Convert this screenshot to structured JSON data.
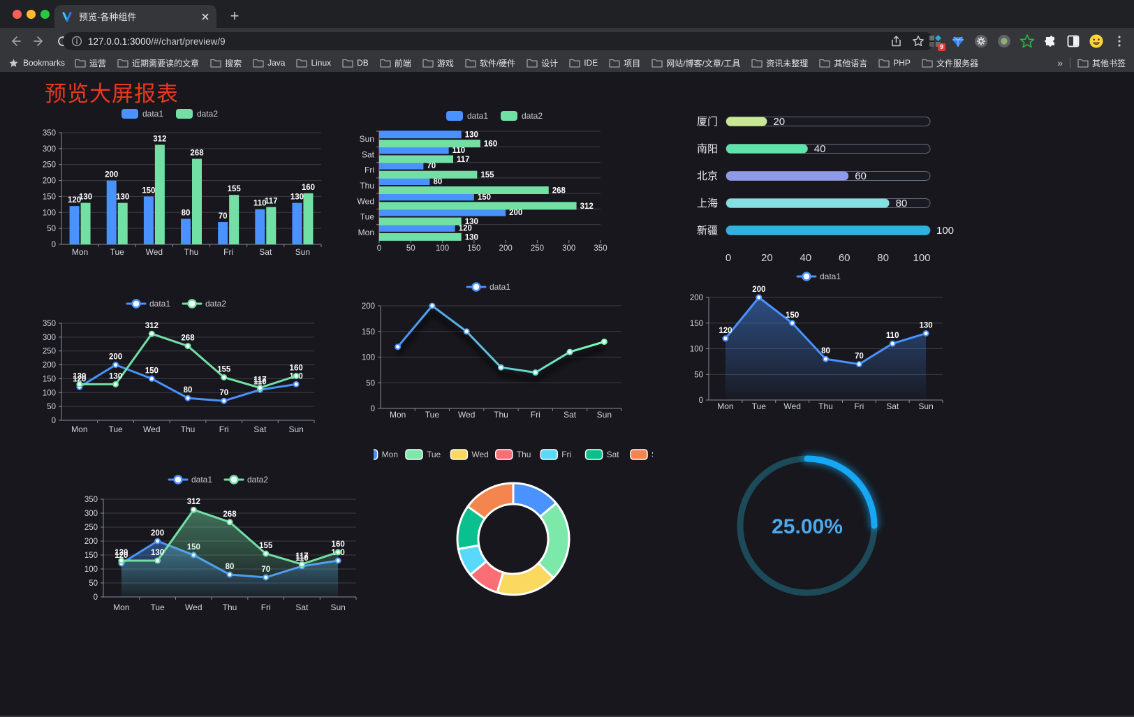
{
  "browser": {
    "tab_title": "预览-各种组件",
    "url_host": "127.0.0.1:3000",
    "url_path": "/#/chart/preview/9",
    "bookmarks_root_label": "Bookmarks",
    "bookmarks": [
      "运营",
      "近期需要读的文章",
      "搜索",
      "Java",
      "Linux",
      "DB",
      "前端",
      "游戏",
      "软件/硬件",
      "设计",
      "IDE",
      "项目",
      "网站/博客/文章/工具",
      "资讯未整理",
      "其他语言",
      "PHP",
      "文件服务器"
    ],
    "bookmarks_overflow": "»",
    "other_bookmarks_label": "其他书签",
    "extension_badge": "9"
  },
  "page": {
    "title": "预览大屏报表",
    "title_color": "#e83a1c",
    "background": "#17171d"
  },
  "chart_data": [
    {
      "id": "grouped-bar",
      "type": "bar",
      "categories": [
        "Mon",
        "Tue",
        "Wed",
        "Thu",
        "Fri",
        "Sat",
        "Sun"
      ],
      "series": [
        {
          "name": "data1",
          "color": "#4992ff",
          "values": [
            120,
            200,
            150,
            80,
            70,
            110,
            130
          ]
        },
        {
          "name": "data2",
          "color": "#72e0a5",
          "values": [
            130,
            130,
            312,
            268,
            155,
            117,
            160
          ]
        }
      ],
      "ylim": [
        0,
        350
      ],
      "ytick_step": 50,
      "grid": true,
      "legend_position": "top",
      "value_labels": true
    },
    {
      "id": "horizontal-bar",
      "type": "bar-horizontal",
      "categories": [
        "Mon",
        "Tue",
        "Wed",
        "Thu",
        "Fri",
        "Sat",
        "Sun"
      ],
      "series": [
        {
          "name": "data1",
          "color": "#4992ff",
          "values": [
            120,
            200,
            150,
            80,
            70,
            110,
            130
          ]
        },
        {
          "name": "data2",
          "color": "#72e0a5",
          "values": [
            130,
            130,
            312,
            268,
            155,
            117,
            160
          ]
        }
      ],
      "xlim": [
        0,
        350
      ],
      "xtick_step": 50,
      "grid": true,
      "legend_position": "top",
      "value_labels": true
    },
    {
      "id": "progress-bars",
      "type": "progress",
      "rows": [
        {
          "label": "厦门",
          "value": 20,
          "color": "#c9e897"
        },
        {
          "label": "南阳",
          "value": 40,
          "color": "#5fe3ab"
        },
        {
          "label": "北京",
          "value": 60,
          "color": "#8f9aec"
        },
        {
          "label": "上海",
          "value": 80,
          "color": "#83dfe2"
        },
        {
          "label": "新疆",
          "value": 100,
          "color": "#2fb1e3"
        }
      ],
      "xlim": [
        0,
        100
      ],
      "xticks": [
        0,
        20,
        40,
        60,
        80,
        100
      ]
    },
    {
      "id": "line-two-series",
      "type": "line",
      "categories": [
        "Mon",
        "Tue",
        "Wed",
        "Thu",
        "Fri",
        "Sat",
        "Sun"
      ],
      "series": [
        {
          "name": "data1",
          "color": "#4992ff",
          "values": [
            120,
            200,
            150,
            80,
            70,
            110,
            130
          ]
        },
        {
          "name": "data2",
          "color": "#72e0a5",
          "values": [
            130,
            130,
            312,
            268,
            155,
            117,
            160
          ]
        }
      ],
      "ylim": [
        0,
        350
      ],
      "ytick_step": 50,
      "legend_position": "top",
      "value_labels": true
    },
    {
      "id": "gradient-line",
      "type": "line",
      "categories": [
        "Mon",
        "Tue",
        "Wed",
        "Thu",
        "Fri",
        "Sat",
        "Sun"
      ],
      "series": [
        {
          "name": "data1",
          "color": "#4992ff",
          "gradient": [
            "#4992ff",
            "#7cffb2"
          ],
          "values": [
            120,
            200,
            150,
            80,
            70,
            110,
            130
          ]
        }
      ],
      "ylim": [
        0,
        200
      ],
      "ytick_step": 50,
      "legend_position": "top",
      "value_labels": false
    },
    {
      "id": "area-line",
      "type": "line",
      "categories": [
        "Mon",
        "Tue",
        "Wed",
        "Thu",
        "Fri",
        "Sat",
        "Sun"
      ],
      "series": [
        {
          "name": "data1",
          "color": "#4992ff",
          "area": true,
          "values": [
            120,
            200,
            150,
            80,
            70,
            110,
            130
          ]
        }
      ],
      "ylim": [
        0,
        200
      ],
      "ytick_step": 50,
      "legend_position": "top",
      "value_labels": true
    },
    {
      "id": "two-series-area",
      "type": "line",
      "categories": [
        "Mon",
        "Tue",
        "Wed",
        "Thu",
        "Fri",
        "Sat",
        "Sun"
      ],
      "series": [
        {
          "name": "data1",
          "color": "#4992ff",
          "area": true,
          "values": [
            120,
            200,
            150,
            80,
            70,
            110,
            130
          ]
        },
        {
          "name": "data2",
          "color": "#72e0a5",
          "area": true,
          "values": [
            130,
            130,
            312,
            268,
            155,
            117,
            160
          ]
        }
      ],
      "ylim": [
        0,
        350
      ],
      "ytick_step": 50,
      "legend_position": "top",
      "value_labels": true
    },
    {
      "id": "donut",
      "type": "pie",
      "categories": [
        "Mon",
        "Tue",
        "Wed",
        "Thu",
        "Fri",
        "Sat",
        "Sun"
      ],
      "values": [
        120,
        200,
        150,
        80,
        70,
        110,
        130
      ],
      "colors": [
        "#4992ff",
        "#7ce8a9",
        "#fbd960",
        "#fc6e75",
        "#58d9f9",
        "#0ac08e",
        "#f5854f"
      ],
      "inner_radius_ratio": 0.62,
      "legend_position": "top",
      "border_color": "#ffffff"
    },
    {
      "id": "gauge",
      "type": "gauge",
      "value": 25,
      "max": 100,
      "display": "25.00%",
      "color": "#16a7f5",
      "track_color": "#1d4a58",
      "text_color": "#4da9ec"
    }
  ]
}
